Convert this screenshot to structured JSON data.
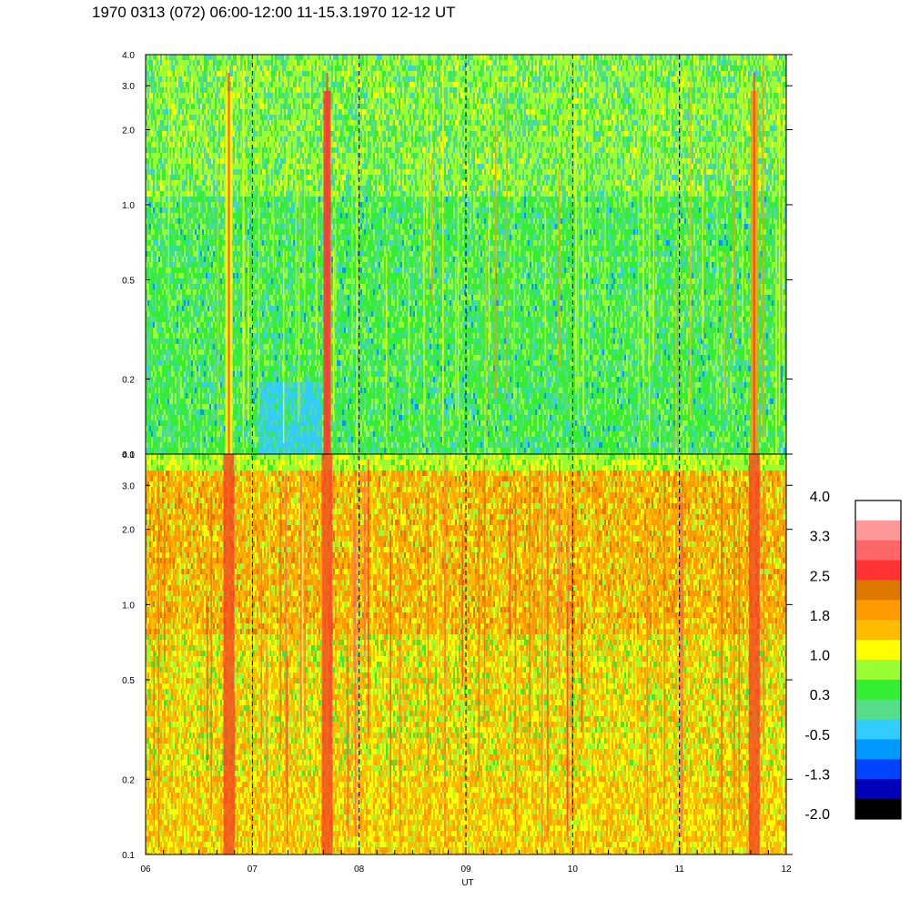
{
  "title": "1970 0313 (072) 06:00-12:00 11-15.3.1970  12-12 UT",
  "chart_data": {
    "type": "heatmap",
    "title": "1970 0313 (072) 06:00-12:00 11-15.3.1970  12-12 UT",
    "xlabel": "UT",
    "x_ticks": [
      "06",
      "07",
      "08",
      "09",
      "10",
      "11",
      "12"
    ],
    "x_range": [
      6,
      12
    ],
    "dashed_hours": [
      7,
      8,
      9,
      10,
      11
    ],
    "y_scale": "log",
    "y_range": [
      0.1,
      4.0
    ],
    "y_ticks": [
      0.1,
      0.2,
      0.5,
      1.0,
      2.0,
      3.0,
      4.0
    ],
    "y_tick_labels": [
      "0.1",
      "0.2",
      "0.5",
      "1.0",
      "2.0",
      "3.0",
      "4.0"
    ],
    "panels": [
      {
        "name": "upper",
        "dominant_colors": [
          "#33ee33",
          "#99ff33",
          "#55dd88"
        ]
      },
      {
        "name": "lower",
        "dominant_colors": [
          "#ffbb00",
          "#ff9900",
          "#ffff00"
        ]
      }
    ],
    "colorbar": {
      "labels": [
        "4.0",
        "3.3",
        "2.5",
        "1.8",
        "1.0",
        "0.3",
        "-0.5",
        "-1.3",
        "-2.0"
      ],
      "range": [
        -2.0,
        4.0
      ],
      "colors_top_to_bottom": [
        "#ffffff",
        "#ff9999",
        "#ff6666",
        "#ff3333",
        "#dd7700",
        "#ff9900",
        "#ffbb00",
        "#ffff00",
        "#99ff33",
        "#33ee33",
        "#55dd88",
        "#33ccff",
        "#0099ff",
        "#0044ff",
        "#0000bb",
        "#000000"
      ]
    },
    "bursts": [
      {
        "hour": 6.78,
        "color": "#ff3333"
      },
      {
        "hour": 7.7,
        "color": "#ff3333"
      },
      {
        "hour": 11.7,
        "color": "#ff3333"
      }
    ],
    "upper_burst_colors": {
      "6.78": "#ffff00",
      "7.7": "#ff3333",
      "11.7": "#ff9900"
    }
  }
}
